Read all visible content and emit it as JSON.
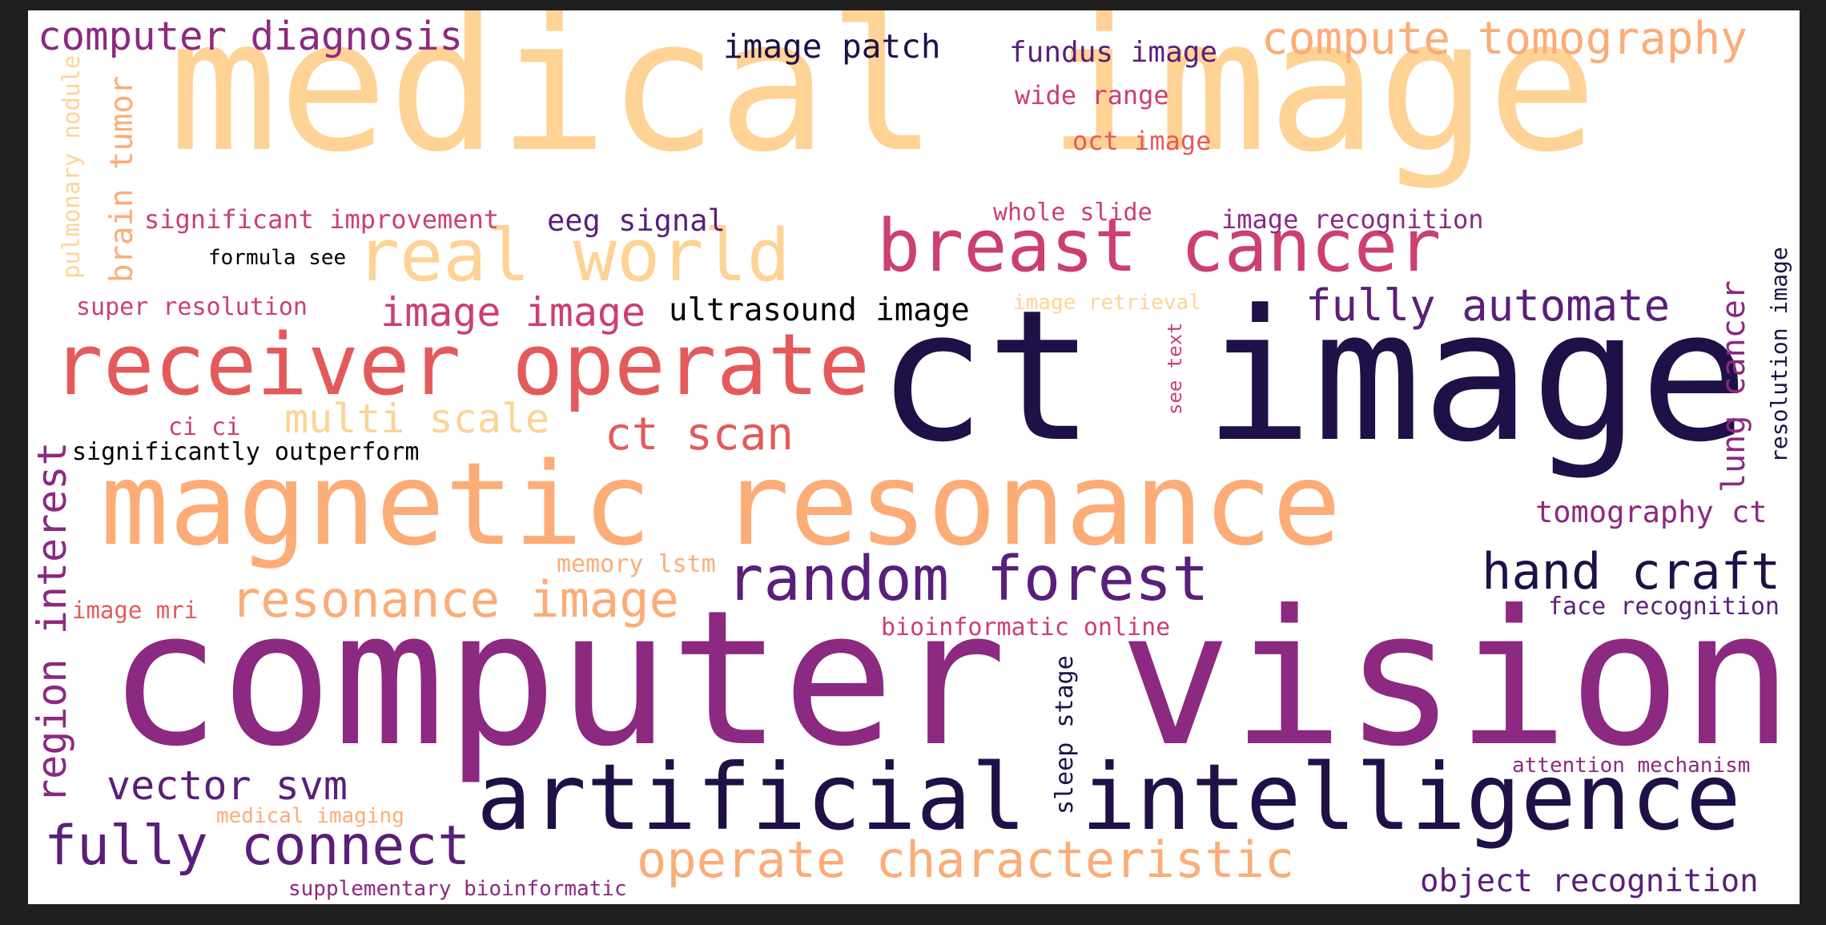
{
  "palette": {
    "dark_navy": "#1f1147",
    "purple": "#8c2981",
    "deep_purple": "#5a1f7a",
    "rose": "#cc3f71",
    "coral": "#e45a5a",
    "peach": "#fcac77",
    "light_peach": "#fed395",
    "black": "#000004"
  },
  "words": [
    "medical image",
    "ct image",
    "computer vision",
    "magnetic resonance",
    "artificial intelligence",
    "receiver operate",
    "breast cancer",
    "real world",
    "random forest",
    "operate characteristic",
    "fully connect",
    "resonance image",
    "computer diagnosis",
    "compute tomography",
    "hand craft",
    "fully automate",
    "vector svm",
    "ct scan",
    "image image",
    "multi scale",
    "image patch",
    "ultrasound image",
    "object recognition",
    "tomography ct",
    "fundus image",
    "eeg signal",
    "region interest",
    "brain tumor",
    "lung cancer",
    "significant improvement",
    "image recognition",
    "wide range",
    "oct image",
    "super resolution",
    "significantly outperform",
    "face recognition",
    "bioinformatic online",
    "whole slide",
    "formula see",
    "ci ci",
    "image mri",
    "memory lstm",
    "attention mechanism",
    "medical imaging",
    "supplementary bioinformatic",
    "image retrieval",
    "pulmonary nodule",
    "resolution image",
    "see text",
    "sleep stage"
  ]
}
